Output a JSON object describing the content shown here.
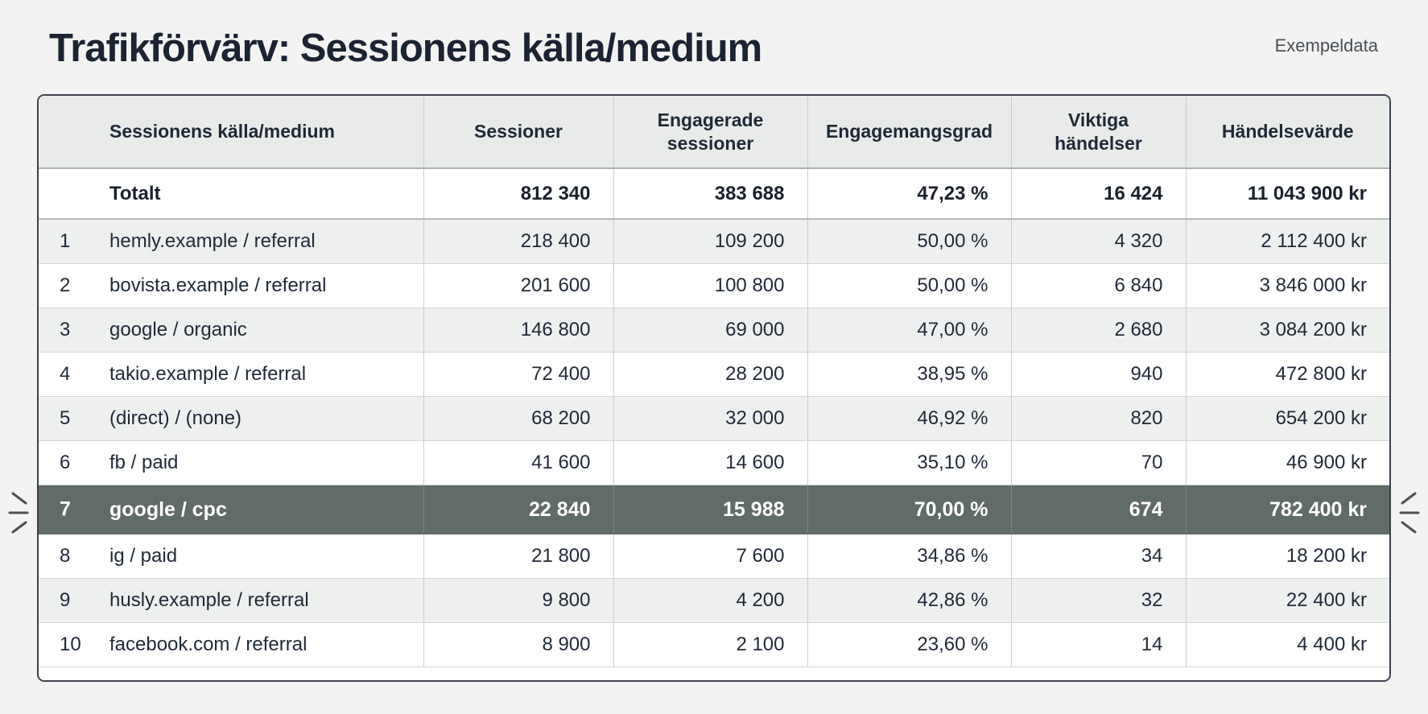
{
  "page": {
    "title": "Trafikförvärv: Sessionens källa/medium",
    "sample_label": "Exempeldata"
  },
  "table": {
    "columns": [
      "Sessionens källa/medium",
      "Sessioner",
      "Engagerade sessioner",
      "Engagemangsgrad",
      "Viktiga händelser",
      "Händelsevärde"
    ],
    "total": {
      "label": "Totalt",
      "sessions": "812 340",
      "engaged": "383 688",
      "rate": "47,23 %",
      "key_events": "16 424",
      "value": "11 043 900 kr"
    },
    "rows": [
      {
        "rank": "1",
        "source": "hemly.example / referral",
        "sessions": "218 400",
        "engaged": "109 200",
        "rate": "50,00 %",
        "key_events": "4 320",
        "value": "2 112 400 kr"
      },
      {
        "rank": "2",
        "source": "bovista.example / referral",
        "sessions": "201 600",
        "engaged": "100 800",
        "rate": "50,00 %",
        "key_events": "6 840",
        "value": "3 846 000 kr"
      },
      {
        "rank": "3",
        "source": "google / organic",
        "sessions": "146 800",
        "engaged": "69 000",
        "rate": "47,00 %",
        "key_events": "2 680",
        "value": "3 084 200 kr"
      },
      {
        "rank": "4",
        "source": "takio.example / referral",
        "sessions": "72 400",
        "engaged": "28 200",
        "rate": "38,95 %",
        "key_events": "940",
        "value": "472 800 kr"
      },
      {
        "rank": "5",
        "source": "(direct) / (none)",
        "sessions": "68 200",
        "engaged": "32 000",
        "rate": "46,92 %",
        "key_events": "820",
        "value": "654 200 kr"
      },
      {
        "rank": "6",
        "source": "fb / paid",
        "sessions": "41 600",
        "engaged": "14 600",
        "rate": "35,10 %",
        "key_events": "70",
        "value": "46 900 kr"
      },
      {
        "rank": "7",
        "source": "google / cpc",
        "sessions": "22 840",
        "engaged": "15 988",
        "rate": "70,00 %",
        "key_events": "674",
        "value": "782 400 kr"
      },
      {
        "rank": "8",
        "source": "ig / paid",
        "sessions": "21 800",
        "engaged": "7 600",
        "rate": "34,86 %",
        "key_events": "34",
        "value": "18 200 kr"
      },
      {
        "rank": "9",
        "source": "husly.example / referral",
        "sessions": "9 800",
        "engaged": "4 200",
        "rate": "42,86 %",
        "key_events": "32",
        "value": "22 400 kr"
      },
      {
        "rank": "10",
        "source": "facebook.com / referral",
        "sessions": "8 900",
        "engaged": "2 100",
        "rate": "23,60 %",
        "key_events": "14",
        "value": "4 400 kr"
      }
    ]
  },
  "colors": {
    "background": "#f2f3f2",
    "header_bg": "#e9ebea",
    "highlight_row": "#616b67",
    "border": "#3d4350"
  },
  "icons": {
    "highlight_marker": "sparkle-lines-icon"
  }
}
